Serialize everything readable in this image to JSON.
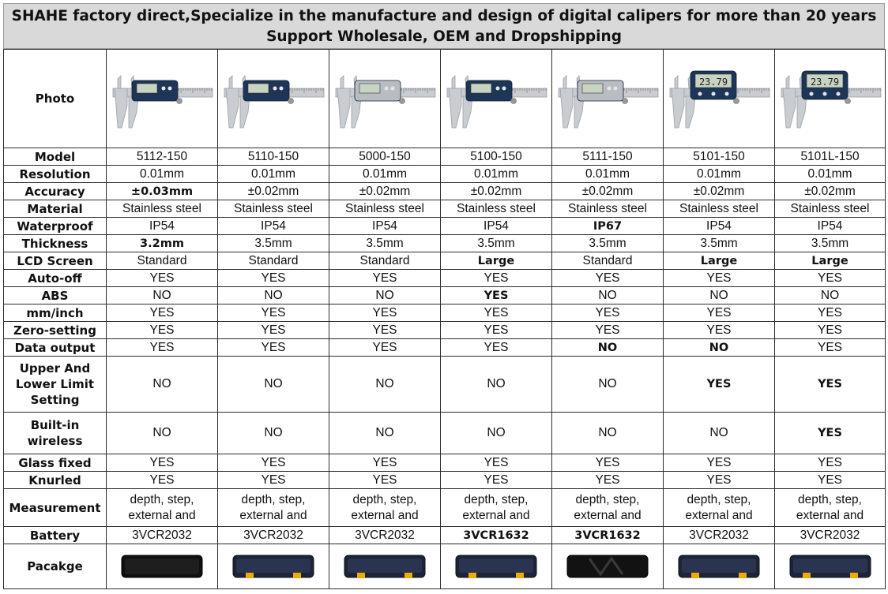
{
  "header": {
    "line1": "SHAHE factory direct,Specialize in the manufacture and design of digital calipers for more than 20 years",
    "line2": "Support Wholesale, OEM and Dropshipping"
  },
  "labels": {
    "photo": "Photo",
    "model": "Model",
    "resolution": "Resolution",
    "accuracy": "Accuracy",
    "material": "Material",
    "waterproof": "Waterproof",
    "thickness": "Thickness",
    "lcd": "LCD Screen",
    "autooff": "Auto-off",
    "abs": "ABS",
    "mminch": "mm/inch",
    "zero": "Zero-setting",
    "dataout": "Data output",
    "limit": "Upper And Lower Limit Setting",
    "wireless": "Built-in wireless",
    "glass": "Glass fixed",
    "knurled": "Knurled",
    "measurement": "Measurement",
    "battery": "Battery",
    "package": "Pacakge"
  },
  "products": [
    {
      "model": "5112-150",
      "resolution": "0.01mm",
      "accuracy": "±0.03mm",
      "material": "Stainless steel",
      "waterproof": "IP54",
      "thickness": "3.2mm",
      "lcd": "Standard",
      "autooff": "YES",
      "abs": "NO",
      "mminch": "YES",
      "zero": "YES",
      "dataout": "YES",
      "limit": "NO",
      "wireless": "NO",
      "glass": "YES",
      "knurled": "YES",
      "measurement_l1": "depth, step,",
      "measurement_l2": "external and",
      "battery": "3VCR2032",
      "photo_icon": "caliper-dark-blue",
      "package_icon": "case-black"
    },
    {
      "model": "5110-150",
      "resolution": "0.01mm",
      "accuracy": "±0.02mm",
      "material": "Stainless steel",
      "waterproof": "IP54",
      "thickness": "3.5mm",
      "lcd": "Standard",
      "autooff": "YES",
      "abs": "NO",
      "mminch": "YES",
      "zero": "YES",
      "dataout": "YES",
      "limit": "NO",
      "wireless": "NO",
      "glass": "YES",
      "knurled": "YES",
      "measurement_l1": "depth, step,",
      "measurement_l2": "external and",
      "battery": "3VCR2032",
      "photo_icon": "caliper-dark-blue",
      "package_icon": "case-navy-yellow"
    },
    {
      "model": "5000-150",
      "resolution": "0.01mm",
      "accuracy": "±0.02mm",
      "material": "Stainless steel",
      "waterproof": "IP54",
      "thickness": "3.5mm",
      "lcd": "Standard",
      "autooff": "YES",
      "abs": "NO",
      "mminch": "YES",
      "zero": "YES",
      "dataout": "YES",
      "limit": "NO",
      "wireless": "NO",
      "glass": "YES",
      "knurled": "YES",
      "measurement_l1": "depth, step,",
      "measurement_l2": "external and",
      "battery": "3VCR2032",
      "photo_icon": "caliper-silver",
      "package_icon": "case-navy-yellow"
    },
    {
      "model": "5100-150",
      "resolution": "0.01mm",
      "accuracy": "±0.02mm",
      "material": "Stainless steel",
      "waterproof": "IP54",
      "thickness": "3.5mm",
      "lcd": "Large",
      "autooff": "YES",
      "abs": "YES",
      "mminch": "YES",
      "zero": "YES",
      "dataout": "YES",
      "limit": "NO",
      "wireless": "NO",
      "glass": "YES",
      "knurled": "YES",
      "measurement_l1": "depth, step,",
      "measurement_l2": "external and",
      "battery": "3VCR1632",
      "photo_icon": "caliper-dark-blue",
      "package_icon": "case-navy-yellow"
    },
    {
      "model": "5111-150",
      "resolution": "0.01mm",
      "accuracy": "±0.02mm",
      "material": "Stainless steel",
      "waterproof": "IP67",
      "thickness": "3.5mm",
      "lcd": "Standard",
      "autooff": "YES",
      "abs": "NO",
      "mminch": "YES",
      "zero": "YES",
      "dataout": "NO",
      "limit": "NO",
      "wireless": "NO",
      "glass": "YES",
      "knurled": "YES",
      "measurement_l1": "depth, step,",
      "measurement_l2": "external and",
      "battery": "3VCR1632",
      "photo_icon": "caliper-silver",
      "package_icon": "case-black-wave"
    },
    {
      "model": "5101-150",
      "resolution": "0.01mm",
      "accuracy": "±0.02mm",
      "material": "Stainless steel",
      "waterproof": "IP54",
      "thickness": "3.5mm",
      "lcd": "Large",
      "autooff": "YES",
      "abs": "NO",
      "mminch": "YES",
      "zero": "YES",
      "dataout": "NO",
      "limit": "YES",
      "wireless": "NO",
      "glass": "YES",
      "knurled": "YES",
      "measurement_l1": "depth, step,",
      "measurement_l2": "external and",
      "battery": "3VCR2032",
      "photo_icon": "caliper-large-lcd",
      "package_icon": "case-navy-yellow"
    },
    {
      "model": "5101L-150",
      "resolution": "0.01mm",
      "accuracy": "±0.02mm",
      "material": "Stainless steel",
      "waterproof": "IP54",
      "thickness": "3.5mm",
      "lcd": "Large",
      "autooff": "YES",
      "abs": "NO",
      "mminch": "YES",
      "zero": "YES",
      "dataout": "YES",
      "limit": "YES",
      "wireless": "YES",
      "glass": "YES",
      "knurled": "YES",
      "measurement_l1": "depth, step,",
      "measurement_l2": "external and",
      "battery": "3VCR2032",
      "photo_icon": "caliper-large-lcd",
      "package_icon": "case-navy-yellow"
    }
  ],
  "highlights": {
    "accuracy": [
      0
    ],
    "waterproof": [
      4
    ],
    "thickness": [
      0
    ],
    "lcd": [
      3,
      5,
      6
    ],
    "abs": [
      3
    ],
    "dataout": [
      4,
      5
    ],
    "limit": [
      5,
      6
    ],
    "wireless": [
      6
    ],
    "battery": [
      3,
      4
    ]
  },
  "lcd_readout": "23.79",
  "colors": {
    "header_bg": "#d9d9d9",
    "highlight_text": "#1f3864",
    "border": "#2b2b2b",
    "caliper_blue": "#1d3557",
    "case_yellow": "#f2a900"
  }
}
